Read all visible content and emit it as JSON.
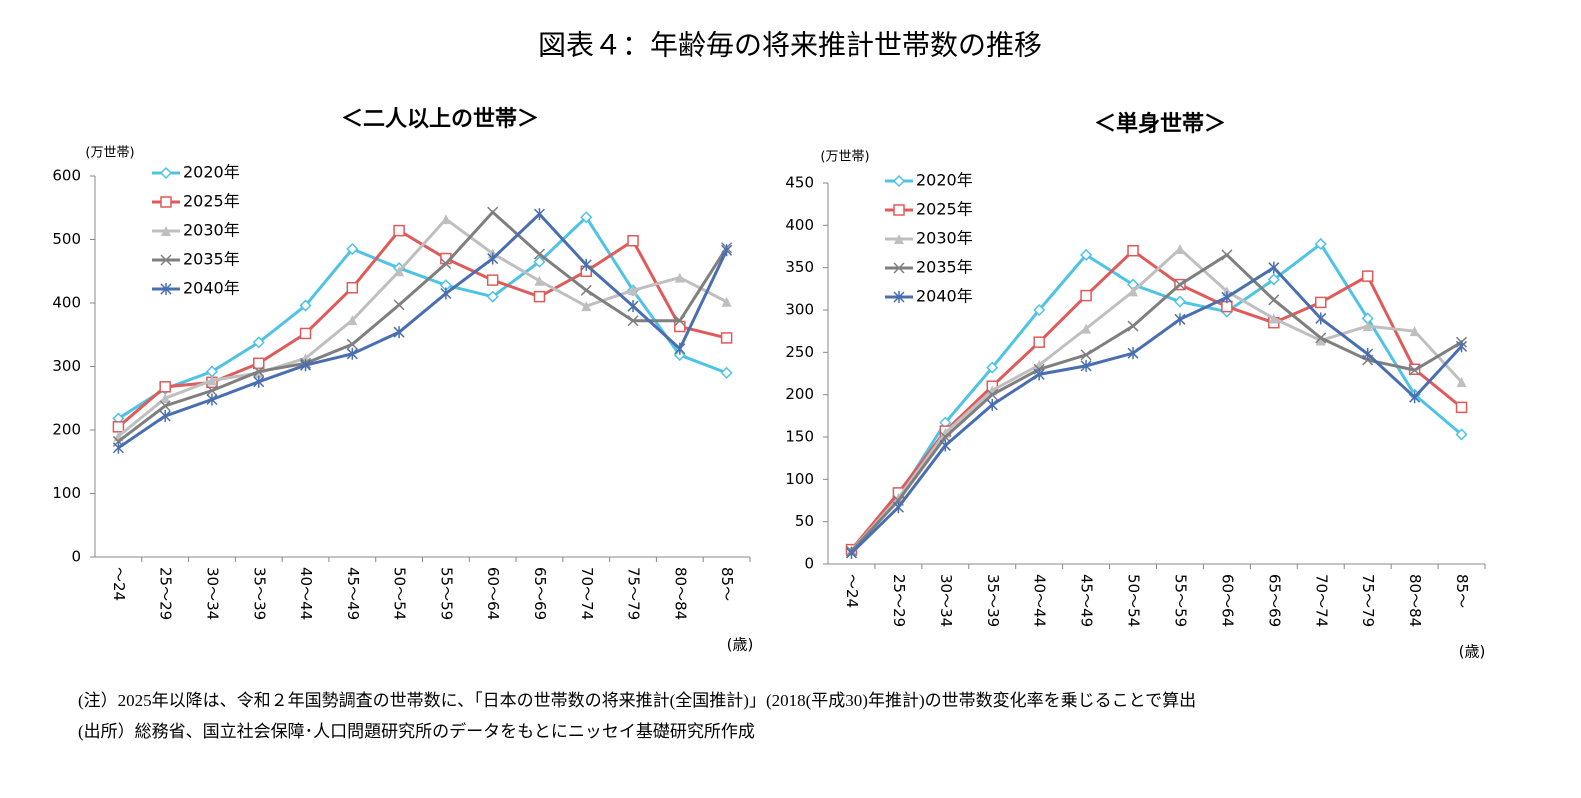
{
  "title": "図表４：年齢毎の将来推計世帯数の推移",
  "notes": [
    "(注）2025年以降は、令和２年国勢調査の世帯数に、「日本の世帯数の将来推計(全国推計)」(2018(平成30)年推計)の世帯数変化率を乗じることで算出",
    "(出所）総務省、国立社会保障･人口問題研究所のデータをもとにニッセイ基礎研究所作成"
  ],
  "chart_data": [
    {
      "type": "line",
      "title": "＜二人以上の世帯＞",
      "y_unit": "(万世帯)",
      "x_unit": "(歳)",
      "categories": [
        "～24",
        "25～29",
        "30～34",
        "35～39",
        "40～44",
        "45～49",
        "50～54",
        "55～59",
        "60～64",
        "65～69",
        "70～74",
        "75～79",
        "80～84",
        "85～"
      ],
      "ylim": [
        0,
        600
      ],
      "yticks": [
        0,
        100,
        200,
        300,
        400,
        500,
        600
      ],
      "grid": false,
      "series": [
        {
          "name": "2020年",
          "color": "#4fc3e6",
          "marker": "diamond",
          "values": [
            218,
            265,
            292,
            338,
            396,
            485,
            455,
            428,
            410,
            465,
            535,
            420,
            318,
            290
          ]
        },
        {
          "name": "2025年",
          "color": "#e05a5a",
          "marker": "square",
          "values": [
            205,
            268,
            275,
            305,
            352,
            424,
            514,
            470,
            436,
            410,
            450,
            498,
            363,
            345
          ]
        },
        {
          "name": "2030年",
          "color": "#bfbfbf",
          "marker": "triangle",
          "values": [
            190,
            250,
            278,
            290,
            313,
            373,
            450,
            532,
            478,
            435,
            395,
            420,
            440,
            402
          ]
        },
        {
          "name": "2035年",
          "color": "#7f7f7f",
          "marker": "x",
          "values": [
            182,
            238,
            262,
            292,
            305,
            335,
            397,
            462,
            543,
            477,
            420,
            372,
            372,
            487
          ]
        },
        {
          "name": "2040年",
          "color": "#4a6fb0",
          "marker": "star",
          "values": [
            172,
            222,
            248,
            276,
            302,
            320,
            354,
            415,
            470,
            540,
            460,
            395,
            328,
            483
          ]
        }
      ]
    },
    {
      "type": "line",
      "title": "＜単身世帯＞",
      "y_unit": "(万世帯)",
      "x_unit": "(歳)",
      "categories": [
        "～24",
        "25～29",
        "30～34",
        "35～39",
        "40～44",
        "45～49",
        "50～54",
        "55～59",
        "60～64",
        "65～69",
        "70～74",
        "75～79",
        "80～84",
        "85～"
      ],
      "ylim": [
        0,
        450
      ],
      "yticks": [
        0,
        50,
        100,
        150,
        200,
        250,
        300,
        350,
        400,
        450
      ],
      "grid": false,
      "series": [
        {
          "name": "2020年",
          "color": "#4fc3e6",
          "marker": "diamond",
          "values": [
            17,
            80,
            167,
            232,
            300,
            365,
            330,
            310,
            298,
            336,
            378,
            290,
            200,
            153
          ]
        },
        {
          "name": "2025年",
          "color": "#e05a5a",
          "marker": "square",
          "values": [
            17,
            84,
            157,
            210,
            262,
            317,
            370,
            330,
            304,
            285,
            309,
            340,
            230,
            185
          ]
        },
        {
          "name": "2030年",
          "color": "#bfbfbf",
          "marker": "triangle",
          "values": [
            16,
            78,
            155,
            205,
            235,
            278,
            322,
            372,
            322,
            290,
            264,
            281,
            275,
            215
          ]
        },
        {
          "name": "2035年",
          "color": "#7f7f7f",
          "marker": "x",
          "values": [
            15,
            75,
            150,
            200,
            230,
            247,
            281,
            330,
            365,
            312,
            267,
            241,
            229,
            262
          ]
        },
        {
          "name": "2040年",
          "color": "#4a6fb0",
          "marker": "star",
          "values": [
            13,
            67,
            140,
            188,
            224,
            234,
            249,
            289,
            315,
            350,
            290,
            248,
            197,
            257
          ]
        }
      ]
    }
  ]
}
